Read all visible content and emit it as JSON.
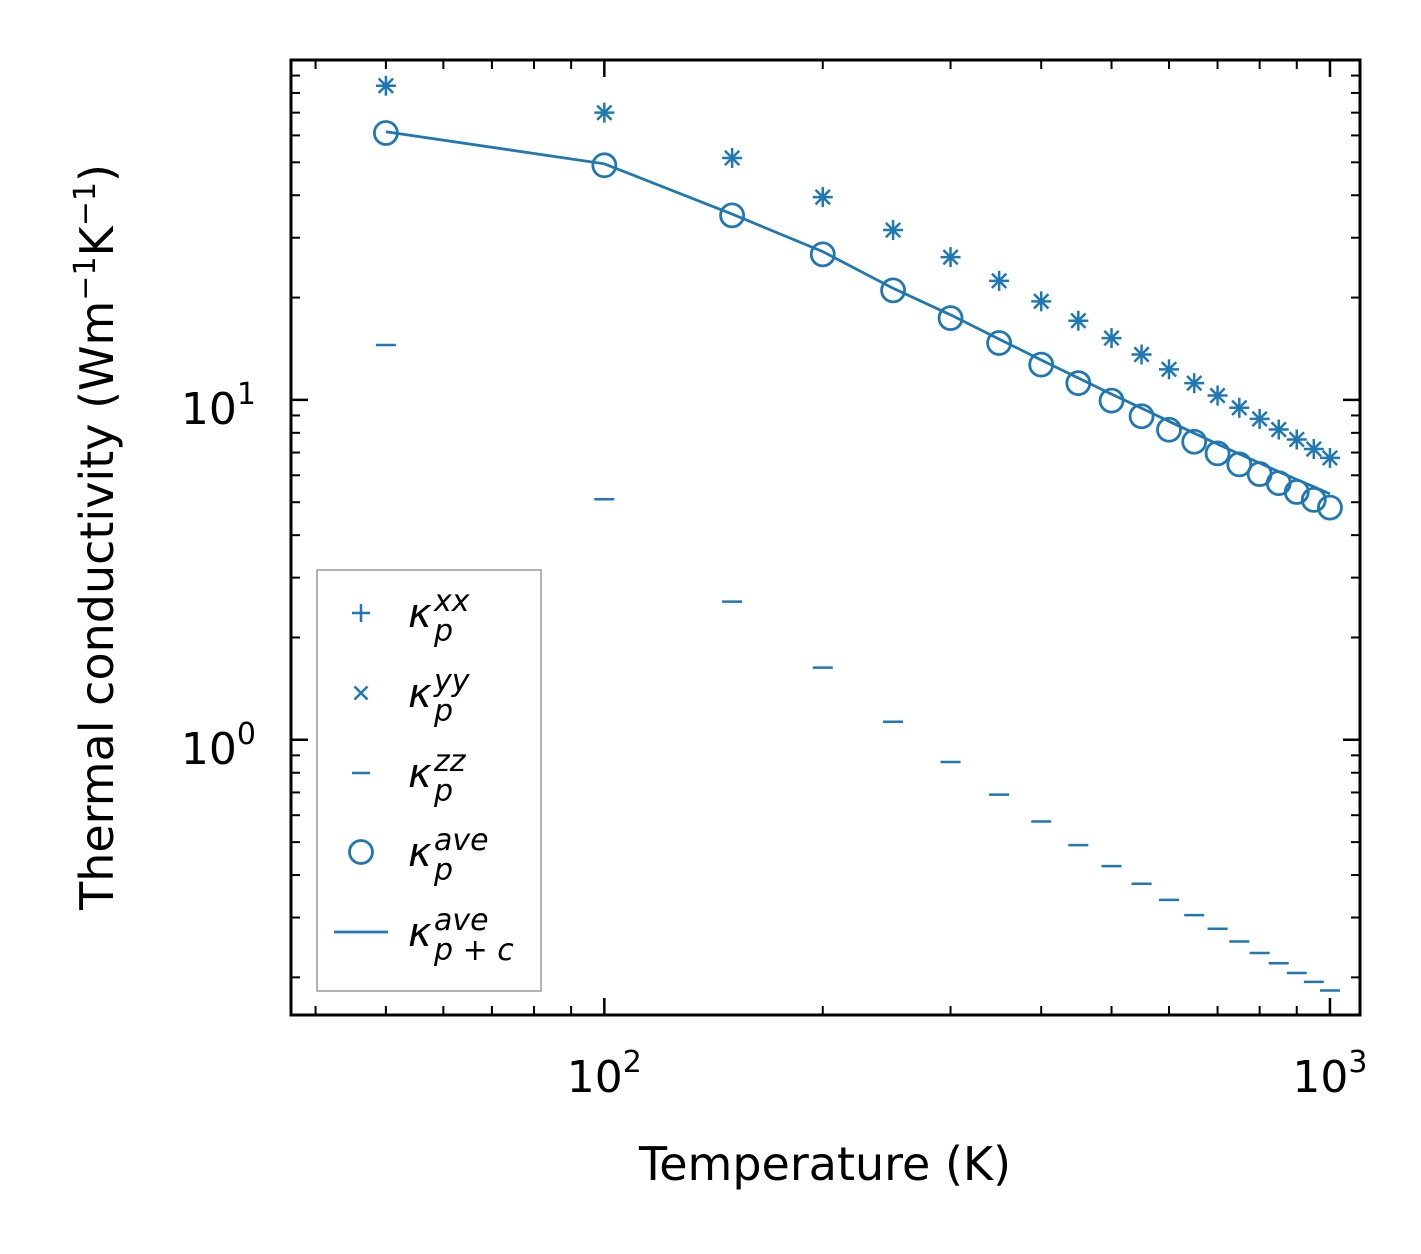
{
  "chart_data": {
    "type": "scatter",
    "title": "",
    "xlabel": "Temperature (K)",
    "ylabel_main": "Thermal conductivity (Wm",
    "ylabel_exp1": "−1",
    "ylabel_mid": "K",
    "ylabel_exp2": "−1",
    "ylabel_end": ")",
    "xscale": "log",
    "yscale": "log",
    "xlim": [
      37,
      1100
    ],
    "ylim": [
      0.155,
      100
    ],
    "x_ticks": [
      {
        "value": 100,
        "base": "10",
        "exp": "2"
      },
      {
        "value": 1000,
        "base": "10",
        "exp": "3"
      }
    ],
    "y_ticks": [
      {
        "value": 1,
        "base": "10",
        "exp": "0"
      },
      {
        "value": 10,
        "base": "10",
        "exp": "1"
      }
    ],
    "color": "#1f77b4",
    "x": [
      50,
      100,
      150,
      200,
      250,
      300,
      350,
      400,
      450,
      500,
      550,
      600,
      650,
      700,
      750,
      800,
      850,
      900,
      950,
      1000
    ],
    "series": [
      {
        "name": "kappa_p_xx",
        "marker": "plus",
        "values": [
          84.0,
          70.0,
          51.5,
          39.5,
          31.6,
          26.3,
          22.4,
          19.5,
          17.1,
          15.2,
          13.6,
          12.3,
          11.2,
          10.3,
          9.48,
          8.79,
          8.18,
          7.65,
          7.17,
          6.75
        ]
      },
      {
        "name": "kappa_p_yy",
        "marker": "x",
        "values": [
          84.0,
          70.0,
          51.5,
          39.5,
          31.6,
          26.3,
          22.4,
          19.5,
          17.1,
          15.2,
          13.6,
          12.3,
          11.2,
          10.3,
          9.48,
          8.79,
          8.18,
          7.65,
          7.17,
          6.75
        ]
      },
      {
        "name": "kappa_p_zz",
        "marker": "hline",
        "values": [
          14.5,
          5.1,
          2.55,
          1.63,
          1.13,
          0.86,
          0.69,
          0.575,
          0.49,
          0.425,
          0.377,
          0.338,
          0.305,
          0.278,
          0.255,
          0.236,
          0.22,
          0.206,
          0.194,
          0.183
        ]
      },
      {
        "name": "kappa_p_ave",
        "marker": "circle",
        "values": [
          61.0,
          49.0,
          34.9,
          26.8,
          21.0,
          17.4,
          14.7,
          12.7,
          11.2,
          9.95,
          8.95,
          8.17,
          7.53,
          6.96,
          6.46,
          6.05,
          5.69,
          5.36,
          5.08,
          4.82
        ]
      },
      {
        "name": "kappa_pc_ave",
        "marker": "line",
        "values": [
          61.5,
          49.5,
          35.2,
          27.3,
          21.3,
          17.8,
          15.1,
          13.1,
          11.6,
          10.4,
          9.45,
          8.65,
          7.98,
          7.41,
          6.93,
          6.52,
          6.15,
          5.83,
          5.55,
          5.29
        ]
      }
    ],
    "legend": {
      "position": "lower-left",
      "entries": [
        {
          "symbol": "kappa_p_xx",
          "main": "κ",
          "sub": "p",
          "sup": "xx"
        },
        {
          "symbol": "kappa_p_yy",
          "main": "κ",
          "sub": "p",
          "sup": "yy"
        },
        {
          "symbol": "kappa_p_zz",
          "main": "κ",
          "sub": "p",
          "sup": "zz"
        },
        {
          "symbol": "kappa_p_ave",
          "main": "κ",
          "sub": "p",
          "sup": "ave"
        },
        {
          "symbol": "kappa_pc_ave",
          "main": "κ",
          "sub": "p + c",
          "sup": "ave"
        }
      ]
    }
  }
}
